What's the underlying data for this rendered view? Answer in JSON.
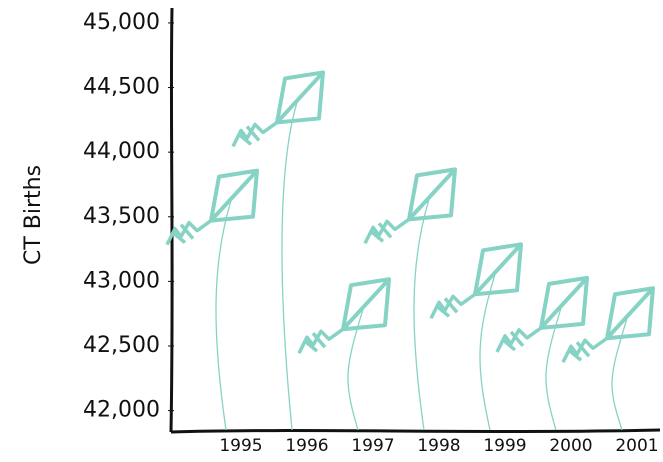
{
  "chart_data": {
    "type": "kite",
    "y_label": "CT Births",
    "categories": [
      "1995",
      "1996",
      "1997",
      "1998",
      "1999",
      "2000",
      "2001"
    ],
    "values": [
      43470,
      44230,
      42630,
      43480,
      42900,
      42640,
      42560
    ],
    "color": "#86d3c6",
    "ylim": [
      41850,
      45100
    ],
    "yticks": [
      {
        "value": 42000,
        "label": "42,000"
      },
      {
        "value": 42500,
        "label": "42,500"
      },
      {
        "value": 43000,
        "label": "43,000"
      },
      {
        "value": 43500,
        "label": "43,500"
      },
      {
        "value": 44000,
        "label": "44,000"
      },
      {
        "value": 44500,
        "label": "44,500"
      },
      {
        "value": 45000,
        "label": "45,000"
      }
    ]
  }
}
